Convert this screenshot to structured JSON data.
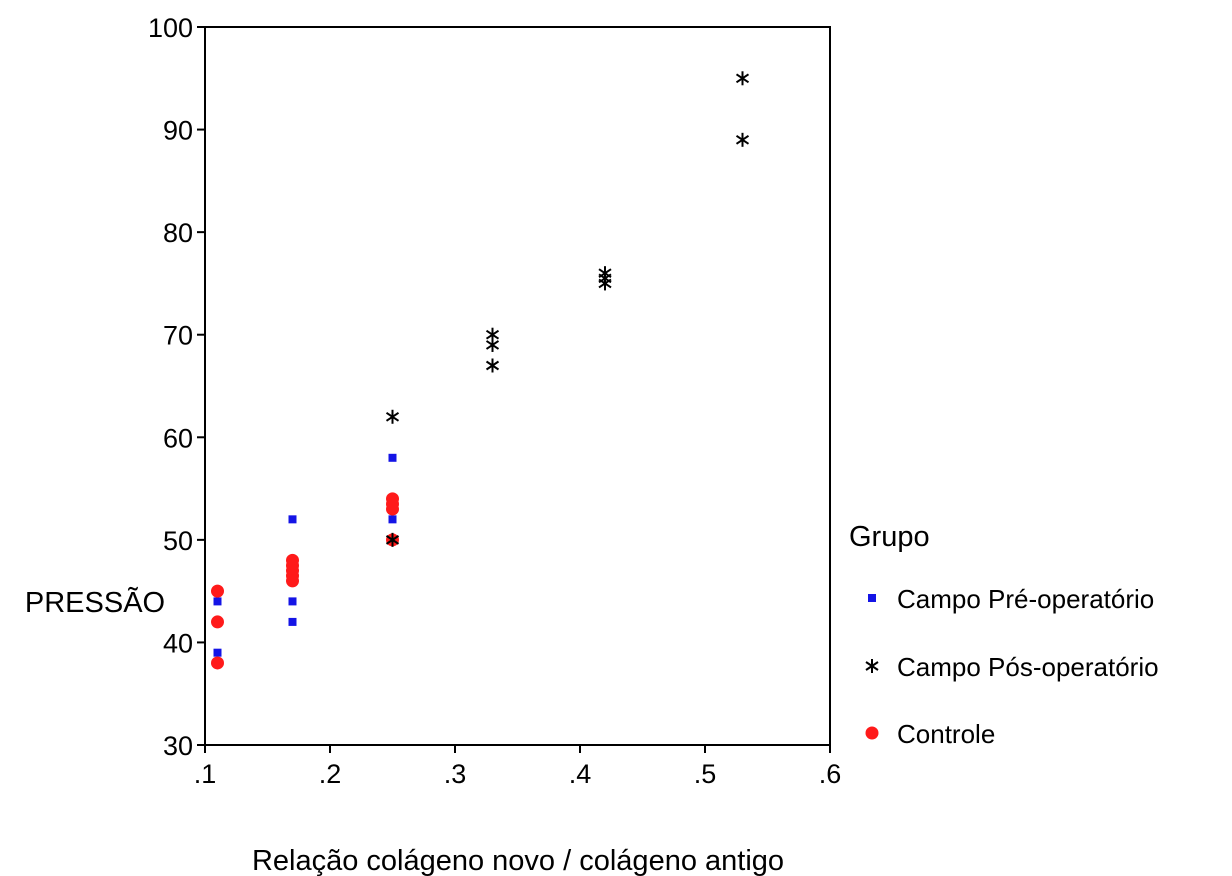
{
  "chart_data": {
    "type": "scatter",
    "xlabel": "Relação colágeno novo / colágeno antigo",
    "ylabel": "PRESSÃO",
    "xlim": [
      0.1,
      0.6
    ],
    "ylim": [
      30,
      100
    ],
    "x_ticks": [
      0.1,
      0.2,
      0.3,
      0.4,
      0.5,
      0.6
    ],
    "x_tick_labels": [
      ".1",
      ".2",
      ".3",
      ".4",
      ".5",
      ".6"
    ],
    "y_ticks": [
      30,
      40,
      50,
      60,
      70,
      80,
      90,
      100
    ],
    "y_tick_labels": [
      "30",
      "40",
      "50",
      "60",
      "70",
      "80",
      "90",
      "100"
    ],
    "grid": false,
    "legend": {
      "title": "Grupo",
      "position": "right"
    },
    "series": [
      {
        "name": "Campo Pré-operatório",
        "marker": "square",
        "color": "#1414e6",
        "points": [
          {
            "x": 0.11,
            "y": 44
          },
          {
            "x": 0.11,
            "y": 42
          },
          {
            "x": 0.11,
            "y": 39
          },
          {
            "x": 0.17,
            "y": 52
          },
          {
            "x": 0.17,
            "y": 48
          },
          {
            "x": 0.17,
            "y": 44
          },
          {
            "x": 0.17,
            "y": 42
          },
          {
            "x": 0.25,
            "y": 58
          },
          {
            "x": 0.25,
            "y": 54
          },
          {
            "x": 0.25,
            "y": 52
          },
          {
            "x": 0.25,
            "y": 50
          }
        ]
      },
      {
        "name": "Campo Pós-operatório",
        "marker": "asterisk",
        "color": "#000000",
        "points": [
          {
            "x": 0.25,
            "y": 62
          },
          {
            "x": 0.25,
            "y": 50
          },
          {
            "x": 0.33,
            "y": 70
          },
          {
            "x": 0.33,
            "y": 69
          },
          {
            "x": 0.33,
            "y": 67
          },
          {
            "x": 0.42,
            "y": 76
          },
          {
            "x": 0.42,
            "y": 75.5
          },
          {
            "x": 0.42,
            "y": 75
          },
          {
            "x": 0.53,
            "y": 95
          },
          {
            "x": 0.53,
            "y": 89
          }
        ]
      },
      {
        "name": "Controle",
        "marker": "circle",
        "color": "#ff1a1a",
        "points": [
          {
            "x": 0.11,
            "y": 45
          },
          {
            "x": 0.11,
            "y": 42
          },
          {
            "x": 0.11,
            "y": 38
          },
          {
            "x": 0.17,
            "y": 48
          },
          {
            "x": 0.17,
            "y": 47.5
          },
          {
            "x": 0.17,
            "y": 47
          },
          {
            "x": 0.17,
            "y": 46.5
          },
          {
            "x": 0.17,
            "y": 46
          },
          {
            "x": 0.25,
            "y": 54
          },
          {
            "x": 0.25,
            "y": 53.5
          },
          {
            "x": 0.25,
            "y": 53
          },
          {
            "x": 0.25,
            "y": 50
          }
        ]
      }
    ]
  }
}
